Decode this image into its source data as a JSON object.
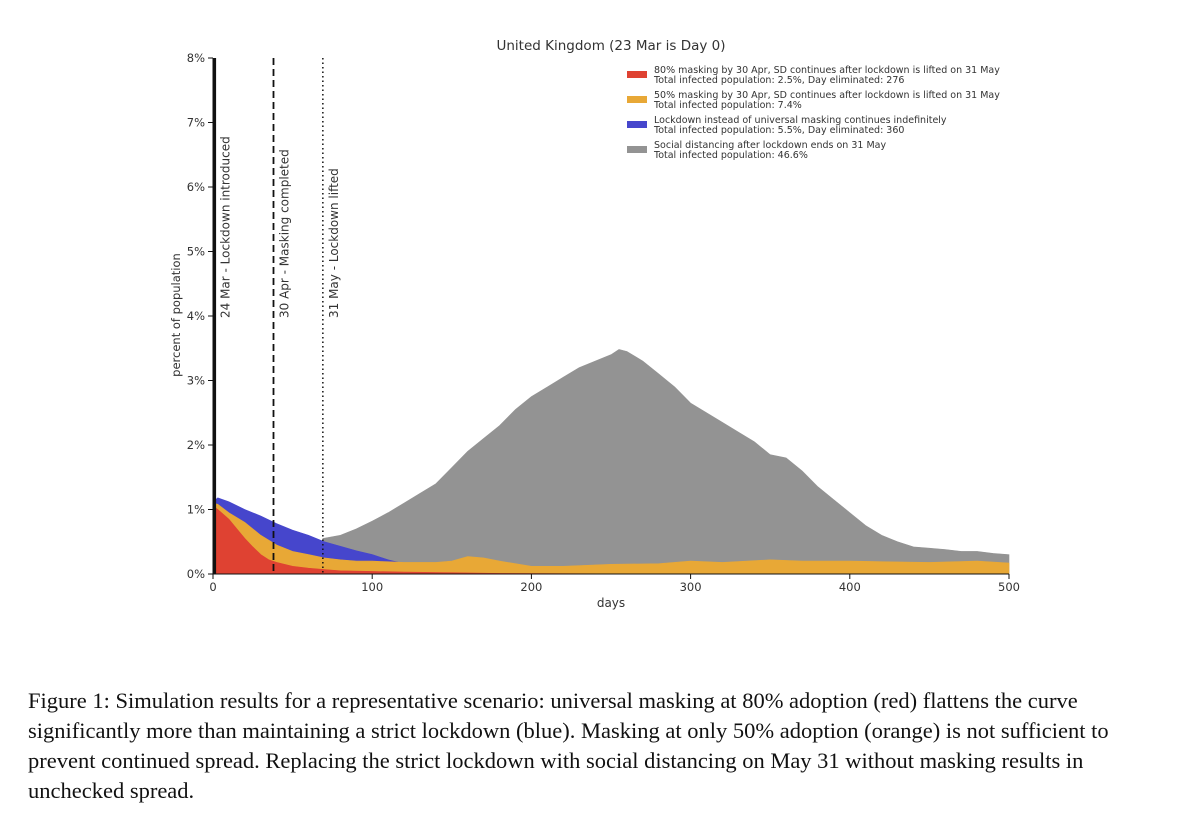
{
  "chart_data": {
    "type": "area",
    "title": "United Kingdom (23 Mar is Day 0)",
    "xlabel": "days",
    "ylabel": "percent of population",
    "xlim": [
      0,
      500
    ],
    "ylim": [
      0,
      8
    ],
    "xticks": [
      0,
      100,
      200,
      300,
      400,
      500
    ],
    "xtick_labels": [
      "0",
      "100",
      "200",
      "300",
      "400",
      "500"
    ],
    "yticks": [
      0,
      1,
      2,
      3,
      4,
      5,
      6,
      7,
      8
    ],
    "ytick_labels": [
      "0%",
      "1%",
      "2%",
      "3%",
      "4%",
      "5%",
      "6%",
      "7%",
      "8%"
    ],
    "legend_position": "top-right",
    "vlines": [
      {
        "x": 1,
        "style": "solid",
        "label": "24 Mar - Lockdown introduced"
      },
      {
        "x": 38,
        "style": "dashed",
        "label": "30 Apr - Masking completed"
      },
      {
        "x": 69,
        "style": "dotted",
        "label": "31 May - Lockdown lifted"
      }
    ],
    "series": [
      {
        "name": "Social distancing after lockdown ends on 31 May",
        "stat": "Total infected population: 46.6%",
        "color": "#939393",
        "x": [
          69,
          80,
          90,
          100,
          110,
          120,
          130,
          140,
          150,
          160,
          170,
          180,
          190,
          200,
          210,
          220,
          230,
          240,
          250,
          255,
          260,
          270,
          280,
          290,
          300,
          310,
          320,
          330,
          340,
          350,
          360,
          370,
          380,
          390,
          400,
          410,
          420,
          430,
          440,
          450,
          460,
          470,
          480,
          490,
          500
        ],
        "values": [
          0.55,
          0.6,
          0.7,
          0.82,
          0.95,
          1.1,
          1.25,
          1.4,
          1.65,
          1.9,
          2.1,
          2.3,
          2.55,
          2.75,
          2.9,
          3.05,
          3.2,
          3.3,
          3.4,
          3.48,
          3.45,
          3.3,
          3.1,
          2.9,
          2.65,
          2.5,
          2.35,
          2.2,
          2.05,
          1.85,
          1.8,
          1.6,
          1.35,
          1.15,
          0.95,
          0.75,
          0.6,
          0.5,
          0.42,
          0.4,
          0.38,
          0.35,
          0.35,
          0.32,
          0.3
        ]
      },
      {
        "name": "Lockdown instead of universal masking continues indefinitely",
        "stat": "Total infected population: 5.5%, Day eliminated: 360",
        "color": "#4646cc",
        "x": [
          0,
          3,
          10,
          20,
          30,
          40,
          50,
          60,
          70,
          80,
          90,
          100,
          110,
          120,
          130
        ],
        "values": [
          1.12,
          1.18,
          1.12,
          1.0,
          0.9,
          0.78,
          0.68,
          0.6,
          0.5,
          0.43,
          0.36,
          0.3,
          0.22,
          0.16,
          0.12
        ]
      },
      {
        "name": "50% masking by 30 Apr, SD continues after lockdown is lifted on 31 May",
        "stat": "Total infected population: 7.4%",
        "color": "#e8a836",
        "x": [
          0,
          3,
          10,
          20,
          30,
          40,
          50,
          60,
          70,
          80,
          90,
          100,
          120,
          140,
          150,
          160,
          170,
          180,
          200,
          220,
          250,
          280,
          300,
          320,
          350,
          370,
          400,
          450,
          480,
          500
        ],
        "values": [
          1.1,
          1.08,
          0.95,
          0.8,
          0.6,
          0.45,
          0.35,
          0.3,
          0.25,
          0.22,
          0.2,
          0.2,
          0.18,
          0.18,
          0.2,
          0.27,
          0.25,
          0.2,
          0.12,
          0.12,
          0.15,
          0.16,
          0.2,
          0.18,
          0.22,
          0.2,
          0.2,
          0.18,
          0.2,
          0.17
        ]
      },
      {
        "name": "80% masking by 30 Apr, SD continues after lockdown is lifted on 31 May",
        "stat": "Total infected population: 2.5%, Day eliminated: 276",
        "color": "#df4232",
        "x": [
          0,
          3,
          10,
          15,
          20,
          25,
          30,
          35,
          40,
          50,
          60,
          70,
          80,
          100,
          120,
          150,
          180,
          220,
          276
        ],
        "values": [
          1.05,
          1.0,
          0.85,
          0.7,
          0.55,
          0.42,
          0.3,
          0.22,
          0.18,
          0.12,
          0.09,
          0.07,
          0.05,
          0.04,
          0.03,
          0.02,
          0.01,
          0.005,
          0.0
        ]
      }
    ],
    "legend_order": [
      3,
      2,
      1,
      0
    ]
  },
  "caption": "Figure 1: Simulation results for a representative scenario: universal masking at 80% adoption (red) flattens the curve significantly more than maintaining a strict lockdown (blue). Masking at only 50% adoption (orange) is not sufficient to prevent continued spread. Replacing the strict lockdown with social distancing on May 31 without masking results in unchecked spread."
}
